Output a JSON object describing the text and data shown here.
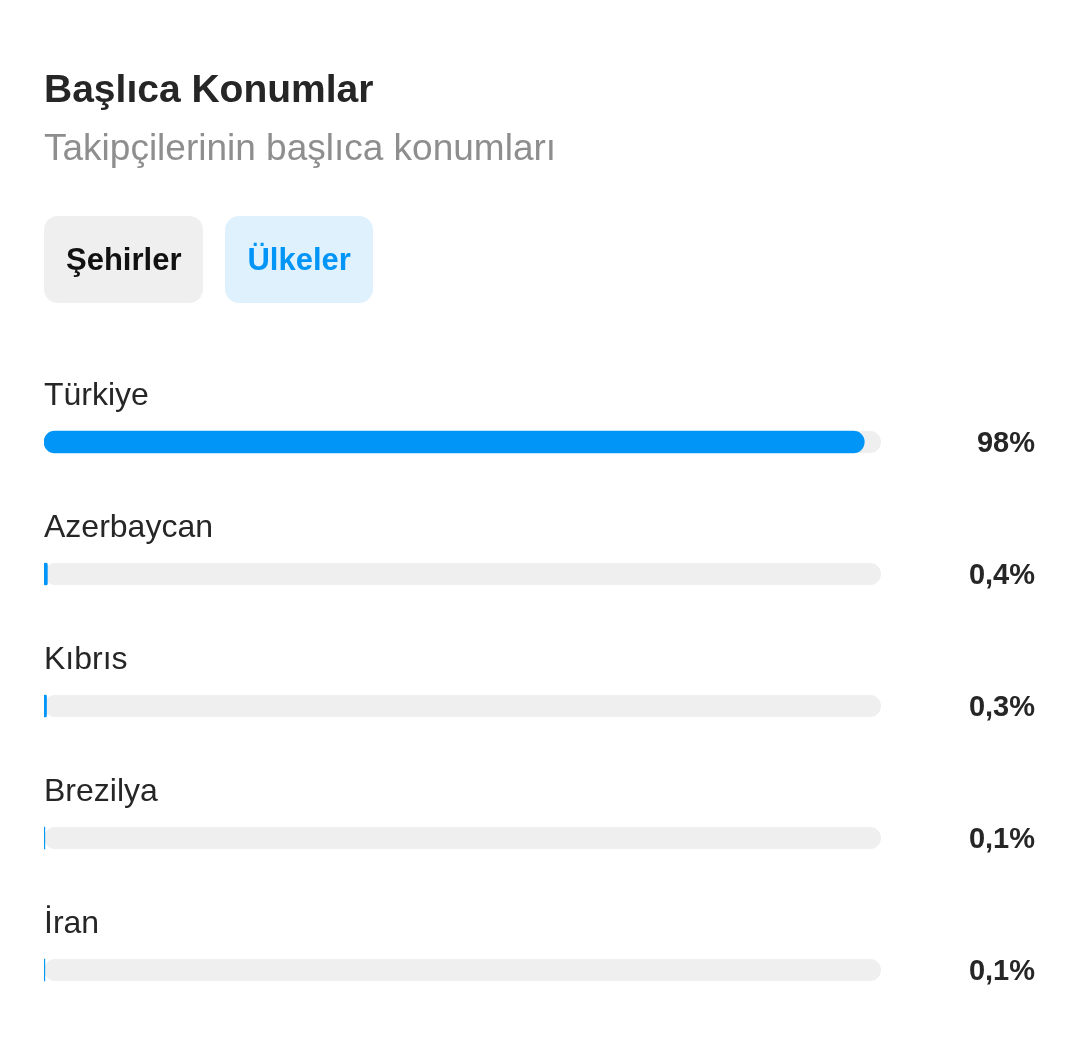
{
  "chart_data": {
    "type": "bar",
    "orientation": "horizontal",
    "title": "Başlıca Konumlar",
    "subtitle": "Takipçilerinin başlıca konumları",
    "annotations": [
      "Şehirler",
      "Ülkeler"
    ],
    "categories": [
      "Türkiye",
      "Azerbaycan",
      "Kıbrıs",
      "Brezilya",
      "İran"
    ],
    "values": [
      98,
      0.4,
      0.3,
      0.1,
      0.1
    ],
    "color": "#0095f6",
    "value_labels": [
      "98%",
      "0,4%",
      "0,3%",
      "0,1%",
      "0,1%"
    ],
    "xlim": [
      0,
      100
    ],
    "tick_labels": "y"
  }
}
